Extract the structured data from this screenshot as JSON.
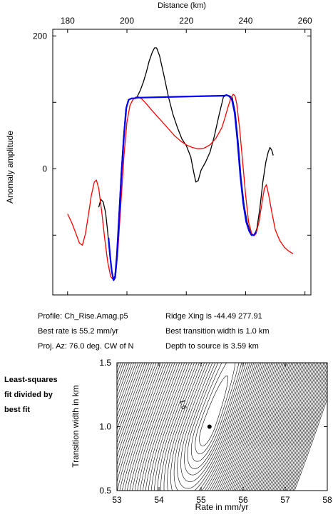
{
  "chart_data": [
    {
      "type": "line",
      "xlabel": "Distance (km)",
      "ylabel": "Anomaly amplitude",
      "xlim": [
        175,
        262
      ],
      "ylim": [
        -190,
        210
      ],
      "x_ticks": [
        180,
        200,
        220,
        240,
        260
      ],
      "y_ticks": [
        200,
        0
      ],
      "series": [
        {
          "color": "#000000",
          "points": [
            [
              190.5,
              -58
            ],
            [
              191.2,
              -46
            ],
            [
              192.0,
              -50
            ],
            [
              192.8,
              -66
            ],
            [
              193.5,
              -95
            ],
            [
              194.2,
              -130
            ],
            [
              194.8,
              -152
            ],
            [
              195.4,
              -166
            ],
            [
              195.9,
              -162
            ],
            [
              196.5,
              -130
            ],
            [
              197.2,
              -75
            ],
            [
              198.0,
              -10
            ],
            [
              198.8,
              45
            ],
            [
              199.6,
              90
            ],
            [
              200.4,
              103
            ],
            [
              201.5,
              106
            ],
            [
              202.5,
              106
            ],
            [
              203.4,
              108
            ],
            [
              204.5,
              118
            ],
            [
              205.5,
              130
            ],
            [
              206.5,
              145
            ],
            [
              207.5,
              162
            ],
            [
              208.5,
              175
            ],
            [
              209.3,
              182
            ],
            [
              210.0,
              182
            ],
            [
              211.0,
              170
            ],
            [
              212.5,
              140
            ],
            [
              214.0,
              108
            ],
            [
              215.5,
              82
            ],
            [
              217.0,
              62
            ],
            [
              218.5,
              45
            ],
            [
              220.0,
              35
            ],
            [
              221.5,
              18
            ],
            [
              222.5,
              -5
            ],
            [
              223.2,
              -20
            ],
            [
              224.0,
              -18
            ],
            [
              225.0,
              -2
            ],
            [
              226.5,
              10
            ],
            [
              228.0,
              25
            ],
            [
              229.5,
              50
            ],
            [
              231.0,
              80
            ],
            [
              232.5,
              108
            ],
            [
              233.5,
              111
            ],
            [
              234.5,
              110
            ],
            [
              235.5,
              107
            ],
            [
              236.5,
              85
            ],
            [
              237.5,
              40
            ],
            [
              238.5,
              -15
            ],
            [
              239.5,
              -55
            ],
            [
              240.5,
              -80
            ],
            [
              241.5,
              -94
            ],
            [
              242.2,
              -100
            ],
            [
              243.0,
              -100
            ],
            [
              243.8,
              -90
            ],
            [
              244.8,
              -60
            ],
            [
              245.8,
              -20
            ],
            [
              246.8,
              10
            ],
            [
              247.6,
              25
            ],
            [
              248.2,
              32
            ],
            [
              248.8,
              28
            ],
            [
              249.3,
              20
            ]
          ]
        },
        {
          "color": "#0000ff",
          "points": [
            [
              193.8,
              -104
            ],
            [
              194.3,
              -130
            ],
            [
              194.9,
              -155
            ],
            [
              195.5,
              -168
            ],
            [
              196.0,
              -164
            ],
            [
              196.7,
              -130
            ],
            [
              197.4,
              -72
            ],
            [
              198.2,
              -5
            ],
            [
              199.0,
              50
            ],
            [
              199.8,
              92
            ],
            [
              200.6,
              104
            ],
            [
              201.6,
              106
            ],
            [
              202.6,
              106
            ],
            [
              203.4,
              107
            ],
            [
              232.8,
              110
            ],
            [
              233.6,
              111
            ],
            [
              234.5,
              109
            ],
            [
              235.4,
              104
            ],
            [
              236.3,
              84
            ],
            [
              237.2,
              45
            ],
            [
              238.2,
              -10
            ],
            [
              239.2,
              -52
            ],
            [
              240.2,
              -80
            ],
            [
              241.2,
              -94
            ],
            [
              242.0,
              -100
            ],
            [
              242.8,
              -100
            ],
            [
              243.5,
              -95
            ]
          ]
        },
        {
          "color": "#ff0000",
          "points": [
            [
              180.0,
              -68
            ],
            [
              181.5,
              -82
            ],
            [
              183.0,
              -100
            ],
            [
              184.0,
              -112
            ],
            [
              185.0,
              -115
            ],
            [
              186.0,
              -98
            ],
            [
              187.0,
              -70
            ],
            [
              188.0,
              -40
            ],
            [
              189.0,
              -20
            ],
            [
              189.7,
              -17
            ],
            [
              190.5,
              -30
            ],
            [
              191.5,
              -65
            ],
            [
              192.5,
              -105
            ],
            [
              193.5,
              -140
            ],
            [
              194.5,
              -162
            ],
            [
              195.5,
              -168
            ],
            [
              196.2,
              -160
            ],
            [
              197.0,
              -120
            ],
            [
              198.0,
              -50
            ],
            [
              199.0,
              20
            ],
            [
              200.0,
              70
            ],
            [
              201.0,
              95
            ],
            [
              202.0,
              104
            ],
            [
              203.0,
              108
            ],
            [
              204.0,
              108
            ],
            [
              205.0,
              105
            ],
            [
              206.5,
              98
            ],
            [
              208.0,
              90
            ],
            [
              210.0,
              80
            ],
            [
              212.0,
              70
            ],
            [
              214.0,
              60
            ],
            [
              216.0,
              50
            ],
            [
              218.0,
              42
            ],
            [
              220.0,
              36
            ],
            [
              222.0,
              32
            ],
            [
              224.0,
              30
            ],
            [
              226.0,
              31
            ],
            [
              228.0,
              36
            ],
            [
              230.0,
              46
            ],
            [
              232.0,
              62
            ],
            [
              233.0,
              76
            ],
            [
              234.0,
              92
            ],
            [
              235.0,
              106
            ],
            [
              235.8,
              112
            ],
            [
              236.4,
              110
            ],
            [
              237.0,
              98
            ],
            [
              238.0,
              60
            ],
            [
              239.0,
              10
            ],
            [
              240.0,
              -40
            ],
            [
              241.0,
              -80
            ],
            [
              242.0,
              -97
            ],
            [
              242.8,
              -101
            ],
            [
              243.5,
              -98
            ],
            [
              244.5,
              -80
            ],
            [
              245.5,
              -52
            ],
            [
              246.3,
              -30
            ],
            [
              247.0,
              -24
            ],
            [
              247.8,
              -40
            ],
            [
              248.8,
              -65
            ],
            [
              250.0,
              -92
            ],
            [
              251.5,
              -108
            ],
            [
              253.0,
              -118
            ],
            [
              254.5,
              -124
            ],
            [
              256.0,
              -128
            ]
          ]
        }
      ]
    },
    {
      "type": "contour",
      "xlabel": "Rate in mm/yr",
      "ylabel": "Transition width in km",
      "xlim": [
        53,
        58
      ],
      "ylim": [
        0.5,
        1.5
      ],
      "x_ticks": [
        53,
        54,
        55,
        56,
        57,
        58
      ],
      "y_ticks": [
        0.5,
        1.0,
        1.5
      ],
      "minimum": {
        "rate": 55.2,
        "width": 1.0
      },
      "center_rate": 55.2,
      "rate_slope_per_km": 1.05,
      "level_label": "1.5",
      "contour_levels": [
        1.08,
        1.16,
        1.26,
        1.38,
        1.5,
        1.65,
        1.82,
        2.0,
        2.2,
        2.42,
        2.66,
        2.92,
        3.2,
        3.5,
        3.82,
        4.16,
        4.52,
        4.9,
        5.3,
        5.72,
        6.16,
        6.62,
        7.1,
        7.6,
        8.12,
        8.66,
        9.22,
        9.8,
        10.4,
        11.02,
        11.66,
        12.32,
        13.0,
        13.7,
        14.42,
        15.16,
        15.92,
        16.7,
        17.5,
        18.32,
        19.16,
        20.02,
        20.9,
        21.8,
        22.72,
        23.66,
        24.62,
        25.6,
        26.6,
        27.62,
        28.66,
        29.72,
        30.8,
        31.9,
        33.02,
        34.16,
        35.32,
        36.5,
        37.7,
        38.92,
        40.16,
        41.42,
        42.7,
        44.0
      ]
    }
  ],
  "info": {
    "profile": "Profile: Ch_Rise.Amag.p5",
    "ridge": "Ridge Xing is -44.49  277.91",
    "rate": "Best rate is 55.2 mm/yr",
    "transition": "Best transition width is 1.0 km",
    "azimuth": "Proj. Az: 76.0 deg. CW of N",
    "depth": "Depth to source is    3.59 km"
  },
  "side_label": [
    "Least-squares",
    "fit divided by",
    "best fit"
  ]
}
